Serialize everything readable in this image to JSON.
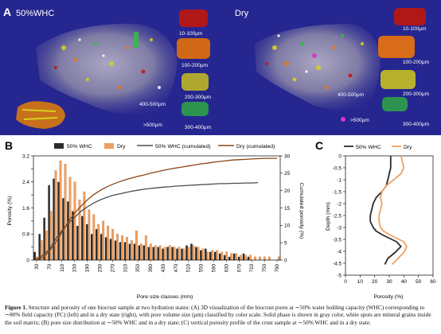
{
  "panel_a": {
    "letter": "A",
    "left": {
      "title": "50%WHC",
      "size_labels": [
        "10-100μm",
        "100-200μm",
        "200-300μm",
        "300-400μm",
        "400-500μm",
        ">500μm"
      ]
    },
    "right": {
      "title": "Dry",
      "size_labels": [
        "10-100μm",
        "100-200μm",
        "200-300μm",
        "300-400μm",
        "400-500μm",
        ">500μm"
      ]
    },
    "colors": {
      "background": "#262690",
      "red_pores": "#c01818",
      "orange_pores": "#e07820",
      "yellow_pores": "#d8d020",
      "green_pores": "#30c040",
      "magenta_pores": "#e030d0"
    }
  },
  "panel_b": {
    "letter": "B",
    "colors": {
      "whc_bar": "#2b2b2b",
      "dry_bar": "#f0a060",
      "whc_line": "#4d4d4d",
      "dry_line": "#8b4513"
    }
  },
  "panel_c": {
    "letter": "C"
  },
  "chart_data": [
    {
      "type": "bar",
      "series": [
        {
          "name": "50% WHC",
          "kind": "bar",
          "color": "#2b2b2b",
          "values": [
            0.25,
            0.8,
            1.3,
            2.3,
            2.5,
            2.4,
            1.9,
            1.8,
            1.5,
            1.05,
            1.35,
            1.1,
            0.8,
            0.95,
            0.8,
            0.7,
            0.65,
            0.6,
            0.55,
            0.55,
            0.5,
            0.5,
            0.45,
            0.45,
            0.4,
            0.4,
            0.4,
            0.35,
            0.4,
            0.4,
            0.35,
            0.35,
            0.45,
            0.5,
            0.4,
            0.3,
            0.35,
            0.25,
            0.25,
            0.2,
            0.15,
            0.1,
            0.2,
            0.1,
            0.2,
            0.1,
            0,
            0,
            0,
            0,
            0,
            0
          ]
        },
        {
          "name": "Dry",
          "kind": "bar",
          "color": "#f0a060",
          "values": [
            0.1,
            0.6,
            0.9,
            1.5,
            2.75,
            3.05,
            2.95,
            2.55,
            2.4,
            1.85,
            2.1,
            1.55,
            1.4,
            1.1,
            1.2,
            1.05,
            0.95,
            0.8,
            0.75,
            0.7,
            0.6,
            0.9,
            0.5,
            0.75,
            0.5,
            0.45,
            0.45,
            0.4,
            0.45,
            0.4,
            0.4,
            0.35,
            0.4,
            0.45,
            0.4,
            0.35,
            0.25,
            0.3,
            0.3,
            0.25,
            0.25,
            0.2,
            0.2,
            0.15,
            0.15,
            0.15,
            0.1,
            0.1,
            0.1,
            0.1,
            0,
            0.1
          ]
        },
        {
          "name": "50% WHC (cumulated)",
          "kind": "line",
          "axis": "right",
          "color": "#4d4d4d",
          "x": [
            30,
            50,
            70,
            90,
            110,
            130,
            150,
            170,
            190,
            210,
            230,
            250,
            270,
            290,
            310,
            330,
            350,
            370,
            390,
            410,
            430,
            450,
            470,
            490,
            510,
            530,
            550,
            570,
            590,
            610,
            630,
            650,
            670,
            690,
            710,
            730
          ],
          "values": [
            0.3,
            1.4,
            3,
            6,
            8.5,
            10.5,
            12.3,
            14,
            15.3,
            16.4,
            17.3,
            18,
            18.6,
            19,
            19.4,
            19.8,
            20.1,
            20.4,
            20.6,
            20.8,
            21,
            21.1,
            21.3,
            21.4,
            21.5,
            21.6,
            21.7,
            21.8,
            21.9,
            22,
            22,
            22.1,
            22.1,
            22.2,
            22.2,
            22.3
          ]
        },
        {
          "name": "Dry (cumulated)",
          "kind": "line",
          "axis": "right",
          "color": "#8b4513",
          "x": [
            30,
            50,
            70,
            90,
            110,
            130,
            150,
            170,
            190,
            210,
            230,
            250,
            270,
            290,
            310,
            330,
            350,
            370,
            390,
            410,
            430,
            450,
            470,
            490,
            510,
            530,
            550,
            570,
            590,
            610,
            630,
            650,
            670,
            690,
            710,
            730,
            750,
            770,
            790
          ],
          "values": [
            0.2,
            0.8,
            2.5,
            5,
            8,
            11,
            13.5,
            15.5,
            17.3,
            18.8,
            20,
            21,
            21.8,
            22.5,
            23.1,
            23.6,
            24.1,
            24.5,
            25,
            25.4,
            25.8,
            26.2,
            26.5,
            26.8,
            27.1,
            27.4,
            27.7,
            27.9,
            28.2,
            28.4,
            28.6,
            28.8,
            28.9,
            29,
            29.1,
            29.2,
            29.3,
            29.3,
            29.3
          ]
        }
      ],
      "x_tick_labels": [
        "30",
        "70",
        "110",
        "150",
        "190",
        "230",
        "270",
        "310",
        "350",
        "390",
        "430",
        "470",
        "510",
        "550",
        "590",
        "630",
        "670",
        "710",
        "750",
        "790"
      ],
      "xlabel": "Pore size classes (mm)",
      "ylabel": "Porosity (%)",
      "ylabel_right": "Cumulated porosity (%)",
      "y_ticks": [
        "0",
        "0.4",
        "0.8",
        "1.2",
        "1.6",
        "2",
        "2.4",
        "2.8",
        "3.2"
      ],
      "y_tick_labels": [
        "0",
        "",
        "0.8",
        "",
        "1.6",
        "",
        "2.4",
        "",
        "3.2"
      ],
      "y2_ticks": [
        "0",
        "5",
        "10",
        "15",
        "20",
        "25",
        "30"
      ],
      "ylim": [
        0,
        3.2
      ],
      "y2lim": [
        0,
        30
      ],
      "legend": [
        "50% WHC",
        "Dry",
        "50% WHC (cumulated)",
        "Dry (cumulated)"
      ],
      "legend_position": "top"
    },
    {
      "type": "line",
      "series": [
        {
          "name": "50% WHC",
          "color": "#2b2b2b",
          "porosity": [
            31,
            31,
            31,
            30,
            29,
            28,
            25,
            21,
            19,
            18,
            17,
            17,
            19,
            21,
            25,
            30,
            35,
            38,
            34,
            29,
            27
          ],
          "depth": [
            0,
            -0.25,
            -0.5,
            -0.75,
            -1,
            -1.25,
            -1.5,
            -1.75,
            -2,
            -2.25,
            -2.5,
            -2.75,
            -3,
            -3.15,
            -3.3,
            -3.45,
            -3.6,
            -3.8,
            -4.05,
            -4.3,
            -4.55
          ]
        },
        {
          "name": "Dry",
          "color": "#f0a060",
          "porosity": [
            38,
            39,
            40,
            38,
            33,
            28,
            25,
            24,
            25,
            24,
            23,
            23,
            24,
            26,
            30,
            35,
            40,
            42,
            40,
            36,
            32
          ],
          "depth": [
            0,
            -0.25,
            -0.5,
            -0.75,
            -1,
            -1.25,
            -1.5,
            -1.75,
            -2,
            -2.25,
            -2.5,
            -2.75,
            -3,
            -3.15,
            -3.3,
            -3.45,
            -3.6,
            -3.8,
            -4.05,
            -4.3,
            -4.55
          ]
        }
      ],
      "xlabel": "Porosity (%)",
      "ylabel": "Depth (mm)",
      "x_ticks": [
        "0",
        "10",
        "20",
        "30",
        "40",
        "50",
        "60"
      ],
      "y_ticks": [
        "0",
        "-0.5",
        "-1",
        "-1.5",
        "-2",
        "-2.5",
        "-3",
        "-3.5",
        "-4",
        "-4.5",
        "-5"
      ],
      "xlim": [
        0,
        60
      ],
      "ylim": [
        -5,
        0
      ],
      "legend": [
        "50% WHC",
        "Dry"
      ],
      "legend_position": "top"
    }
  ],
  "caption": {
    "label": "Figure 1.",
    "text": "Structure and porosity of one biocrust sample at two hydration states: (A) 3D visualization of the biocrust pores at ∼50% water holding capacity (WHC) corresponding to ∼80% field capacity (FC) (left) and in a dry state (right), with pore volume size (μm) classified by color scale. Solid phase is shown in gray color, white spots are mineral grains inside the soil matrix; (B) pore size distribution at ∼50% WHC and in a dry state; (C) vertical porosity profile of the crust sample at ∼50% WHC and in a dry state."
  }
}
